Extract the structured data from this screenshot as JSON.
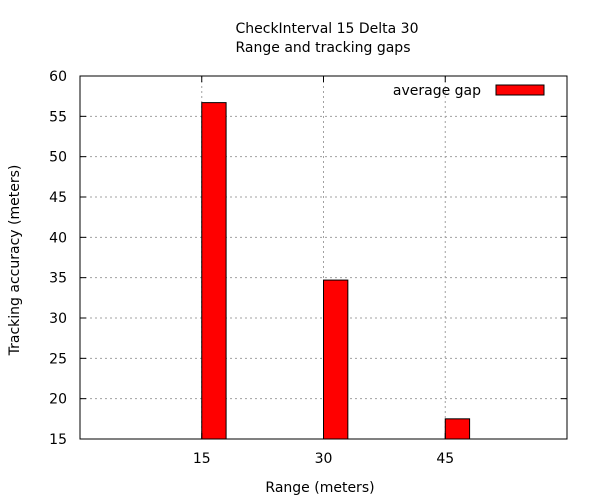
{
  "chart_data": {
    "type": "bar",
    "title_line1": "CheckInterval 15 Delta 30",
    "title_line2": "Range and tracking gaps",
    "xlabel": "Range (meters)",
    "ylabel": "Tracking accuracy (meters)",
    "x_ticks": [
      15,
      30,
      45
    ],
    "ylim": [
      15,
      60
    ],
    "y_ticks": [
      15,
      20,
      25,
      30,
      35,
      40,
      45,
      50,
      55,
      60
    ],
    "grid": true,
    "legend_position": "top-right",
    "series": [
      {
        "name": "average gap",
        "color": "#ff0000",
        "points": [
          {
            "x": 15,
            "y": 56.7
          },
          {
            "x": 30,
            "y": 34.7
          },
          {
            "x": 45,
            "y": 17.5
          }
        ]
      }
    ]
  }
}
